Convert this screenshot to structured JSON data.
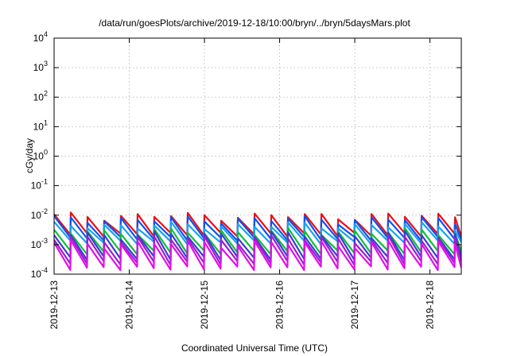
{
  "chart_data": {
    "type": "line",
    "title": "/data/run/goesPlots/archive/2019-12-18/10:00/bryn/../bryn/5daysMars.plot",
    "xlabel": "Coordinated Universal Time (UTC)",
    "ylabel": "cGy/day",
    "y_scale": "log",
    "ylim": [
      0.0001,
      10000
    ],
    "y_ticks": [
      {
        "value": 0.0001,
        "base": "10",
        "exp": "-4"
      },
      {
        "value": 0.001,
        "base": "10",
        "exp": "-3"
      },
      {
        "value": 0.01,
        "base": "10",
        "exp": "-2"
      },
      {
        "value": 0.1,
        "base": "10",
        "exp": "-1"
      },
      {
        "value": 1,
        "base": "10",
        "exp": "0"
      },
      {
        "value": 10,
        "base": "10",
        "exp": "1"
      },
      {
        "value": 100,
        "base": "10",
        "exp": "2"
      },
      {
        "value": 1000,
        "base": "10",
        "exp": "3"
      },
      {
        "value": 10000,
        "base": "10",
        "exp": "4"
      }
    ],
    "xlim": [
      "2019-12-13 00:00",
      "2019-12-18 10:00"
    ],
    "x_ticks": [
      "2019-12-13",
      "2019-12-14",
      "2019-12-15",
      "2019-12-16",
      "2019-12-17",
      "2019-12-18"
    ],
    "grid": true,
    "pattern": "sawtooth decay, roughly 4.5 cycles per day; each cycle jumps up at its start and decays until the next jump",
    "series": [
      {
        "color": "#e8101a",
        "peak": 0.0095,
        "trough": 0.0022
      },
      {
        "color": "#1050f0",
        "peak": 0.0072,
        "trough": 0.0016
      },
      {
        "color": "#1aa0ee",
        "peak": 0.0045,
        "trough": 0.0012
      },
      {
        "color": "#0fbe3c",
        "peak": 0.0028,
        "trough": 0.00055
      },
      {
        "color": "#3c3cd0",
        "peak": 0.0022,
        "trough": 0.00035
      },
      {
        "color": "#9a1fd0",
        "peak": 0.0016,
        "trough": 0.00024
      },
      {
        "color": "#e010e6",
        "peak": 0.0011,
        "trough": 0.00016
      }
    ]
  }
}
